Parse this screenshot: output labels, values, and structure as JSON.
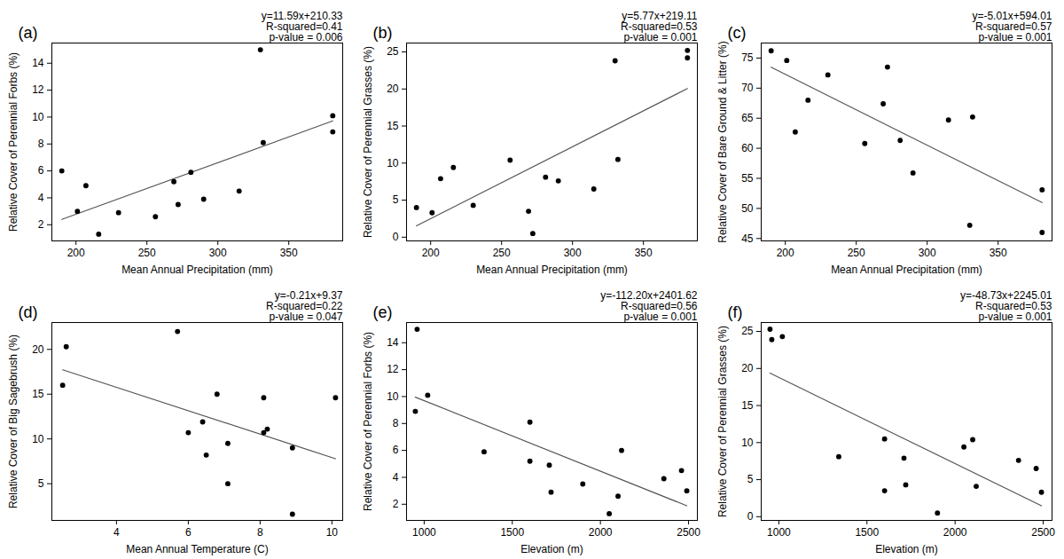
{
  "chart_data": [
    {
      "type": "scatter",
      "title": "(a)",
      "annotations": [
        "y=11.59x+210.33",
        "R-squared=0.41",
        "p-value = 0.006"
      ],
      "x_label": "Mean Annual Precipitation (mm)",
      "y_label": "Relative Cover of Perennial Forbs (%)",
      "x": [
        190,
        201,
        207,
        216,
        230,
        256,
        269,
        272,
        281,
        290,
        315,
        330,
        332,
        381,
        381
      ],
      "series": [
        {
          "type": "scatter",
          "marker": "circle",
          "color": "#000000",
          "values": [
            6.0,
            3.0,
            4.9,
            1.3,
            2.9,
            2.6,
            5.2,
            3.5,
            5.9,
            3.9,
            4.5,
            15.0,
            8.1,
            10.1,
            8.9
          ]
        },
        {
          "type": "regression",
          "line_style": "solid",
          "color": "#555555"
        }
      ],
      "xlim": [
        183,
        388
      ],
      "xticks": [
        200,
        250,
        300,
        350
      ],
      "ylim": [
        0.8,
        15.5
      ],
      "yticks": [
        2,
        4,
        6,
        8,
        10,
        12,
        14
      ]
    },
    {
      "type": "scatter",
      "title": "(b)",
      "annotations": [
        "y=5.77x+219.11",
        "R-squared=0.53",
        "p-value = 0.001"
      ],
      "x_label": "Mean Annual Precipitation (mm)",
      "y_label": "Relative Cover of Perennial Grasses (%)",
      "x": [
        190,
        201,
        207,
        216,
        230,
        256,
        269,
        272,
        281,
        290,
        315,
        330,
        332,
        381,
        381
      ],
      "series": [
        {
          "type": "scatter",
          "marker": "circle",
          "color": "#000000",
          "values": [
            4.0,
            3.3,
            7.9,
            9.4,
            4.3,
            10.4,
            3.5,
            0.5,
            8.1,
            7.6,
            6.5,
            23.8,
            10.5,
            25.2,
            24.2
          ]
        },
        {
          "type": "regression",
          "line_style": "solid",
          "color": "#555555"
        }
      ],
      "xlim": [
        183,
        388
      ],
      "xticks": [
        200,
        250,
        300,
        350
      ],
      "ylim": [
        -0.5,
        26.2
      ],
      "yticks": [
        0,
        5,
        10,
        15,
        20,
        25
      ]
    },
    {
      "type": "scatter",
      "title": "(c)",
      "annotations": [
        "y=-5.01x+594.01",
        "R-squared=0.57",
        "p-value = 0.001"
      ],
      "x_label": "Mean Annual Precipitation (mm)",
      "y_label": "Relative Cover of Bare Ground & Litter (%)",
      "x": [
        190,
        201,
        207,
        216,
        230,
        256,
        269,
        272,
        281,
        290,
        315,
        330,
        332,
        381,
        381
      ],
      "series": [
        {
          "type": "scatter",
          "marker": "circle",
          "color": "#000000",
          "values": [
            76.2,
            74.6,
            62.7,
            68.0,
            72.2,
            60.8,
            67.4,
            73.5,
            61.3,
            55.9,
            64.7,
            47.2,
            65.2,
            53.1,
            46.0
          ]
        },
        {
          "type": "regression",
          "line_style": "solid",
          "color": "#555555"
        }
      ],
      "xlim": [
        183,
        388
      ],
      "xticks": [
        200,
        250,
        300,
        350
      ],
      "ylim": [
        44.6,
        77.5
      ],
      "yticks": [
        45,
        50,
        55,
        60,
        65,
        70,
        75
      ]
    },
    {
      "type": "scatter",
      "title": "(d)",
      "annotations": [
        "y=-0.21x+9.37",
        "R-squared=0.22",
        "p-value = 0.047"
      ],
      "x_label": "Mean Annual Temperature (C)",
      "y_label": "Relative Cover of Big Sagebrush (%)",
      "x": [
        2.5,
        2.6,
        5.7,
        6.0,
        6.4,
        6.5,
        6.8,
        7.1,
        7.1,
        8.1,
        8.1,
        8.2,
        8.9,
        8.9,
        10.1
      ],
      "series": [
        {
          "type": "scatter",
          "marker": "circle",
          "color": "#000000",
          "values": [
            16.0,
            20.3,
            22.0,
            10.7,
            11.9,
            8.2,
            15.0,
            9.5,
            5.0,
            14.6,
            10.7,
            11.1,
            9.0,
            1.6,
            14.6
          ]
        },
        {
          "type": "regression",
          "line_style": "solid",
          "color": "#555555"
        }
      ],
      "xlim": [
        2.2,
        10.3
      ],
      "xticks": [
        4,
        6,
        8,
        10
      ],
      "ylim": [
        0.9,
        23
      ],
      "yticks": [
        5,
        10,
        15,
        20
      ]
    },
    {
      "type": "scatter",
      "title": "(e)",
      "annotations": [
        "y=-112.20x+2401.62",
        "R-squared=0.56",
        "p-value = 0.001"
      ],
      "x_label": "Elevation (m)",
      "y_label": "Relative Cover of Perennial Forbs (%)",
      "x": [
        950,
        960,
        1020,
        1340,
        1600,
        1600,
        1710,
        1720,
        1900,
        2050,
        2100,
        2120,
        2360,
        2460,
        2490
      ],
      "series": [
        {
          "type": "scatter",
          "marker": "circle",
          "color": "#000000",
          "values": [
            8.9,
            15.0,
            10.1,
            5.9,
            8.1,
            5.2,
            4.9,
            2.9,
            3.5,
            1.3,
            2.6,
            6.0,
            3.9,
            4.5,
            3.0
          ]
        },
        {
          "type": "regression",
          "line_style": "solid",
          "color": "#555555"
        }
      ],
      "xlim": [
        900,
        2550
      ],
      "xticks": [
        1000,
        1500,
        2000,
        2500
      ],
      "ylim": [
        0.8,
        15.5
      ],
      "yticks": [
        2,
        4,
        6,
        8,
        10,
        12,
        14
      ]
    },
    {
      "type": "scatter",
      "title": "(f)",
      "annotations": [
        "y=-48.73x+2245.01",
        "R-squared=0.53",
        "p-value = 0.001"
      ],
      "x_label": "Elevation (m)",
      "y_label": "Relative Cover of Perennial Grasses (%)",
      "x": [
        950,
        960,
        1020,
        1340,
        1600,
        1600,
        1710,
        1720,
        1900,
        2050,
        2100,
        2120,
        2360,
        2460,
        2490
      ],
      "series": [
        {
          "type": "scatter",
          "marker": "circle",
          "color": "#000000",
          "values": [
            25.3,
            23.9,
            24.3,
            8.1,
            10.5,
            3.5,
            7.9,
            4.3,
            0.5,
            9.4,
            10.4,
            4.1,
            7.6,
            6.5,
            3.3
          ]
        },
        {
          "type": "regression",
          "line_style": "solid",
          "color": "#555555"
        }
      ],
      "xlim": [
        900,
        2550
      ],
      "xticks": [
        1000,
        1500,
        2000,
        2500
      ],
      "ylim": [
        -0.5,
        26.2
      ],
      "yticks": [
        0,
        5,
        10,
        15,
        20,
        25
      ]
    }
  ]
}
